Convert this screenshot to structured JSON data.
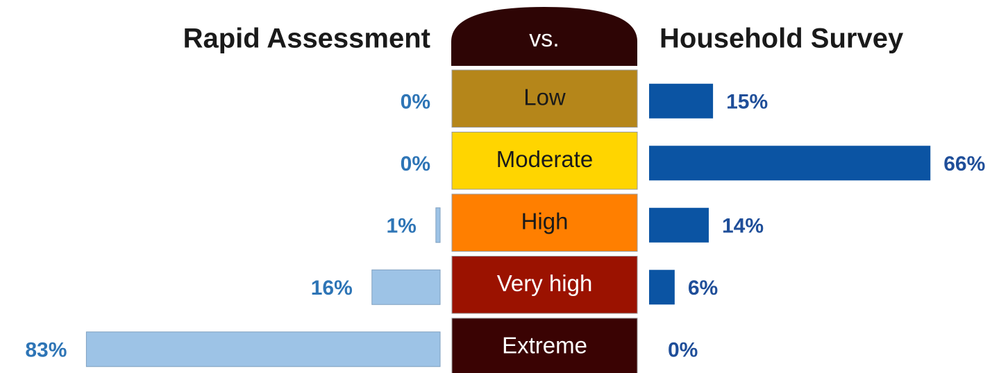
{
  "chart_data": {
    "type": "butterfly",
    "center_label": "vs.",
    "categories": [
      "Low",
      "Moderate",
      "High",
      "Very high",
      "Extreme"
    ],
    "category_colors": [
      "#b5861a",
      "#ffd500",
      "#ff7f00",
      "#9b1200",
      "#3a0303"
    ],
    "series": [
      {
        "name": "Rapid Assessment",
        "color": "#9dc3e6",
        "label_color": "#2e75b6",
        "values": [
          0,
          0,
          1,
          16,
          83
        ],
        "value_labels": [
          "0%",
          "0%",
          "1%",
          "16%",
          "83%"
        ]
      },
      {
        "name": "Household Survey",
        "color": "#0b54a3",
        "label_color": "#1f4e99",
        "values": [
          15,
          66,
          14,
          6,
          0
        ],
        "value_labels": [
          "15%",
          "66%",
          "14%",
          "6%",
          "0%"
        ]
      }
    ]
  }
}
